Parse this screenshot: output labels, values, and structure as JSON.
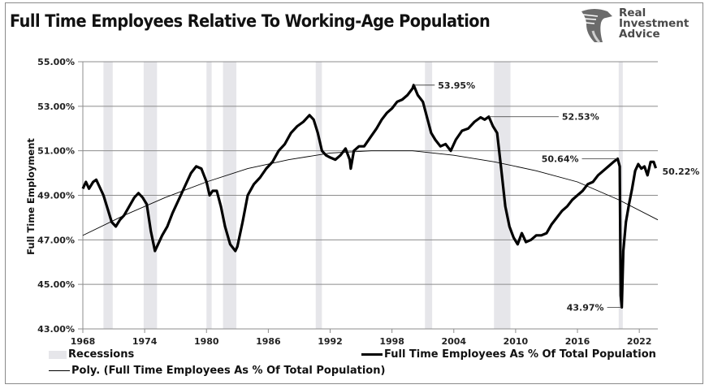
{
  "header": {
    "title": "Full Time Employees Relative To Working-Age Population",
    "logo": {
      "line1": "Real",
      "line2": "Investment",
      "line3": "Advice",
      "icon": "eagle-head-icon"
    }
  },
  "legend": {
    "recessions": "Recessions",
    "main_series": "Full Time Employees As % Of Total Population",
    "trend_series": "Poly. (Full Time Employees As % Of Total Population)"
  },
  "annotations": [
    {
      "label": "53.95%",
      "year": 2000.1,
      "value": 53.95
    },
    {
      "label": "52.53%",
      "year": 2007.4,
      "value": 52.53
    },
    {
      "label": "50.64%",
      "year": 2019.9,
      "value": 50.64
    },
    {
      "label": "43.97%",
      "year": 2020.3,
      "value": 43.97
    },
    {
      "label": "50.22%",
      "year": 2023.6,
      "value": 50.22
    }
  ],
  "colors": {
    "line": "#000000",
    "recession": "#e6e6ea",
    "grid": "#8c8c8c",
    "trend": "#000000"
  },
  "chart_data": {
    "type": "line",
    "title": "Full Time Employees Relative To Working-Age Population",
    "xlabel": "",
    "ylabel": "Full Time Employment",
    "xlim": [
      1968,
      2023.8
    ],
    "ylim": [
      43,
      55
    ],
    "x_ticks": [
      1968,
      1974,
      1980,
      1986,
      1992,
      1998,
      2004,
      2010,
      2016,
      2022
    ],
    "y_ticks": [
      "43.00%",
      "45.00%",
      "47.00%",
      "49.00%",
      "51.00%",
      "53.00%",
      "55.00%"
    ],
    "y_tick_values": [
      43,
      45,
      47,
      49,
      51,
      53,
      55
    ],
    "grid": "horizontal",
    "legend_position": "bottom",
    "recessions": [
      [
        1970.0,
        1970.9
      ],
      [
        1973.9,
        1975.2
      ],
      [
        1980.0,
        1980.5
      ],
      [
        1981.6,
        1982.9
      ],
      [
        1990.6,
        1991.2
      ],
      [
        2001.2,
        2001.9
      ],
      [
        2007.9,
        2009.5
      ],
      [
        2020.0,
        2020.4
      ]
    ],
    "series": [
      {
        "name": "Full Time Employees As % Of Total Population",
        "x": [
          1968.0,
          1968.3,
          1968.6,
          1969.0,
          1969.3,
          1969.6,
          1970.0,
          1970.4,
          1970.8,
          1971.2,
          1971.6,
          1972.0,
          1972.5,
          1973.0,
          1973.4,
          1973.8,
          1974.2,
          1974.6,
          1975.0,
          1975.3,
          1975.7,
          1976.2,
          1976.7,
          1977.3,
          1977.9,
          1978.5,
          1979.0,
          1979.5,
          1980.0,
          1980.3,
          1980.6,
          1981.0,
          1981.4,
          1981.8,
          1982.3,
          1982.8,
          1983.0,
          1983.5,
          1984.0,
          1984.6,
          1985.2,
          1985.8,
          1986.4,
          1987.0,
          1987.6,
          1988.2,
          1988.8,
          1989.4,
          1990.0,
          1990.4,
          1990.8,
          1991.2,
          1991.6,
          1992.0,
          1992.5,
          1993.0,
          1993.5,
          1993.9,
          1994.0,
          1994.3,
          1994.8,
          1995.3,
          1995.9,
          1996.5,
          1997.0,
          1997.5,
          1998.0,
          1998.5,
          1999.0,
          1999.5,
          2000.0,
          2000.1,
          2000.5,
          2001.0,
          2001.4,
          2001.8,
          2002.2,
          2002.7,
          2003.2,
          2003.7,
          2004.2,
          2004.8,
          2005.4,
          2006.0,
          2006.6,
          2007.0,
          2007.4,
          2007.8,
          2008.2,
          2008.6,
          2009.0,
          2009.4,
          2009.8,
          2010.2,
          2010.6,
          2011.0,
          2011.5,
          2012.0,
          2012.5,
          2013.0,
          2013.5,
          2014.0,
          2014.5,
          2015.0,
          2015.5,
          2016.0,
          2016.5,
          2017.0,
          2017.5,
          2018.0,
          2018.5,
          2019.0,
          2019.5,
          2019.9,
          2020.1,
          2020.2,
          2020.3,
          2020.45,
          2020.7,
          2021.0,
          2021.3,
          2021.6,
          2021.9,
          2022.2,
          2022.5,
          2022.8,
          2023.1,
          2023.4,
          2023.6
        ],
        "values": [
          49.3,
          49.6,
          49.3,
          49.6,
          49.7,
          49.4,
          49.0,
          48.4,
          47.8,
          47.6,
          47.9,
          48.1,
          48.5,
          48.9,
          49.1,
          48.9,
          48.6,
          47.4,
          46.5,
          46.8,
          47.2,
          47.6,
          48.2,
          48.8,
          49.4,
          50.0,
          50.3,
          50.2,
          49.6,
          49.0,
          49.2,
          49.2,
          48.5,
          47.6,
          46.8,
          46.5,
          46.7,
          47.8,
          49.0,
          49.5,
          49.8,
          50.2,
          50.5,
          51.0,
          51.3,
          51.8,
          52.1,
          52.3,
          52.6,
          52.4,
          51.8,
          51.0,
          50.8,
          50.7,
          50.6,
          50.8,
          51.1,
          50.6,
          50.2,
          51.0,
          51.2,
          51.2,
          51.6,
          52.0,
          52.4,
          52.7,
          52.9,
          53.2,
          53.3,
          53.5,
          53.8,
          53.95,
          53.5,
          53.2,
          52.5,
          51.8,
          51.5,
          51.2,
          51.3,
          51.0,
          51.5,
          51.9,
          52.0,
          52.3,
          52.5,
          52.4,
          52.53,
          52.1,
          51.8,
          50.2,
          48.5,
          47.6,
          47.1,
          46.8,
          47.3,
          46.9,
          47.0,
          47.2,
          47.2,
          47.3,
          47.7,
          48.0,
          48.3,
          48.5,
          48.8,
          49.0,
          49.2,
          49.5,
          49.6,
          49.9,
          50.1,
          50.3,
          50.5,
          50.64,
          50.3,
          44.5,
          43.97,
          46.5,
          47.8,
          48.6,
          49.3,
          50.1,
          50.4,
          50.2,
          50.3,
          49.9,
          50.5,
          50.5,
          50.22
        ]
      },
      {
        "name": "Poly. (Full Time Employees As % Of Total Population)",
        "x": [
          1968,
          1972,
          1976,
          1980,
          1984,
          1988,
          1992,
          1996,
          2000,
          2004,
          2008,
          2012,
          2016,
          2020,
          2023.8
        ],
        "values": [
          47.2,
          48.1,
          48.9,
          49.6,
          50.2,
          50.6,
          50.9,
          51.0,
          51.0,
          50.8,
          50.5,
          50.1,
          49.6,
          48.8,
          47.9
        ]
      }
    ]
  }
}
